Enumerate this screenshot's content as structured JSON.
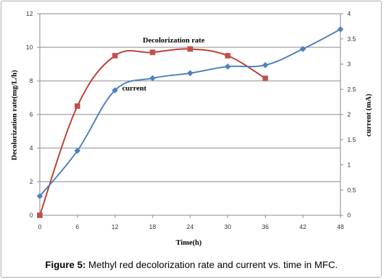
{
  "caption": {
    "label": "Figure 5:",
    "text": " Methyl red decolorization rate and current vs. time in MFC."
  },
  "colors": {
    "decolorization": "#c0392b",
    "decolorization_marker": "#c0504d",
    "current": "#4a7ebb",
    "current_marker": "#4f81bd",
    "gridline": "#868686",
    "axis": "#868686"
  },
  "chart_data": {
    "type": "line",
    "xlabel": "Time(h)",
    "ylabel_left": "Decolorization rate(mg/L/h)",
    "ylabel_right": "current (mA)",
    "x_ticks": [
      "0",
      "6",
      "12",
      "18",
      "24",
      "30",
      "36",
      "42",
      "48"
    ],
    "xlim": [
      0,
      48
    ],
    "ylim_left": [
      0,
      12
    ],
    "ylim_right": [
      0,
      4
    ],
    "y_ticks_left": [
      "0",
      "2",
      "4",
      "6",
      "8",
      "10",
      "12"
    ],
    "y_ticks_right": [
      "0",
      "0.5",
      "1",
      "1.5",
      "2",
      "2.5",
      "3",
      "3.5",
      "4"
    ],
    "grid": "horizontal",
    "series": [
      {
        "name": "Decolorization rate",
        "axis": "left",
        "marker": "square",
        "x": [
          0,
          6,
          12,
          18,
          24,
          30,
          36
        ],
        "y": [
          0,
          6.5,
          9.5,
          9.7,
          9.9,
          9.5,
          8.15
        ]
      },
      {
        "name": "current",
        "axis": "right",
        "marker": "diamond",
        "x": [
          0,
          6,
          12,
          18,
          24,
          30,
          36,
          42,
          48
        ],
        "y": [
          0.38,
          1.28,
          2.48,
          2.72,
          2.82,
          2.95,
          2.98,
          3.3,
          3.69
        ]
      }
    ]
  }
}
